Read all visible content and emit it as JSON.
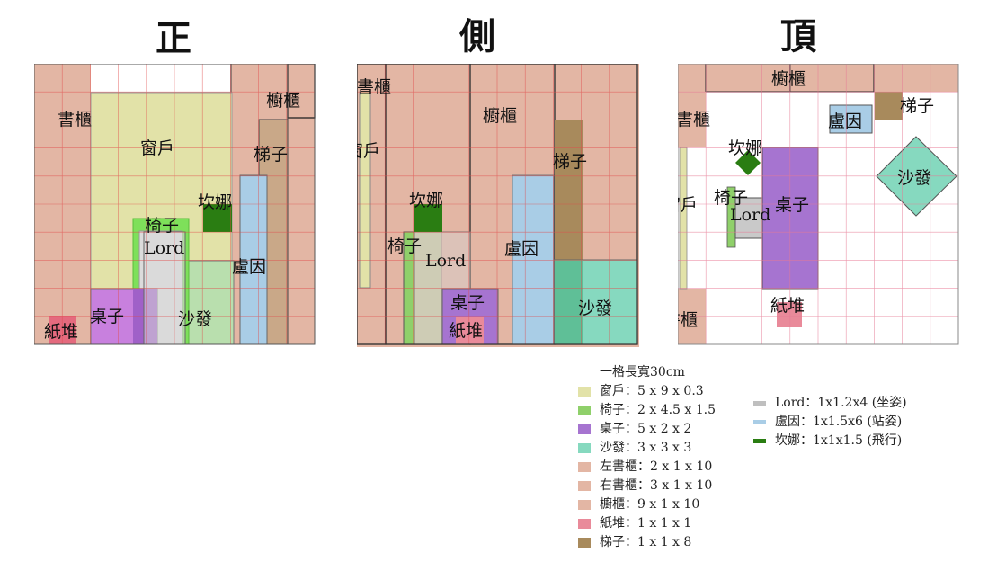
{
  "titles": {
    "front": "正",
    "side": "側",
    "top": "頂"
  },
  "labels": {
    "front": {
      "bookcase_left": "書櫃",
      "window": "窗戶",
      "cabinet": "櫥櫃",
      "ladder": "梯子",
      "kanna": "坎娜",
      "chair": "椅子",
      "lord": "Lord",
      "lucien": "盧因",
      "desk": "桌子",
      "sofa": "沙發",
      "paper": "紙堆"
    },
    "side": {
      "bookcase": "書櫃",
      "window": "窗戶",
      "cabinet": "櫥櫃",
      "ladder": "梯子",
      "kanna": "坎娜",
      "chair": "椅子",
      "lord": "Lord",
      "lucien": "盧因",
      "desk": "桌子",
      "paper": "紙堆",
      "sofa": "沙發"
    },
    "top": {
      "cabinet": "櫥櫃",
      "ladder": "梯子",
      "bookcase_top": "書櫃",
      "lucien": "盧因",
      "kanna": "坎娜",
      "sofa": "沙發",
      "window": "窗戶",
      "chair": "椅子",
      "desk": "桌子",
      "lord": "Lord",
      "paper": "紙堆",
      "bookcase_bottom": "書櫃"
    }
  },
  "legend": {
    "header": "一格長寬30cm",
    "col1": [
      {
        "color": "#e2e2a8",
        "text": "窗戶：5 x 9 x 0.3"
      },
      {
        "color": "#8fd06a",
        "text": "椅子：2 x 4.5 x 1.5"
      },
      {
        "color": "#a674d0",
        "text": "桌子：5 x 2 x 2"
      },
      {
        "color": "#86d9bf",
        "text": "沙發：3 x 3 x 3"
      },
      {
        "color": "#e3b6a4",
        "text": "左書櫃：2 x 1 x 10"
      },
      {
        "color": "#e3b6a4",
        "text": "右書櫃：3 x 1 x 10"
      },
      {
        "color": "#e3b6a4",
        "text": "櫥櫃：9 x 1 x 10"
      },
      {
        "color": "#e98a9a",
        "text": "紙堆：1 x 1 x 1"
      },
      {
        "color": "#a88a5c",
        "text": "梯子：1 x 1 x 8"
      }
    ],
    "col2": [
      {
        "color": "#bfbfbf",
        "text": "Lord：1x1.2x4 (坐姿)"
      },
      {
        "color": "#a9cde6",
        "text": "盧因：1x1.5x6 (站姿)"
      },
      {
        "color": "#2a7d12",
        "text": "坎娜：1x1x1.5 (飛行)"
      }
    ]
  }
}
